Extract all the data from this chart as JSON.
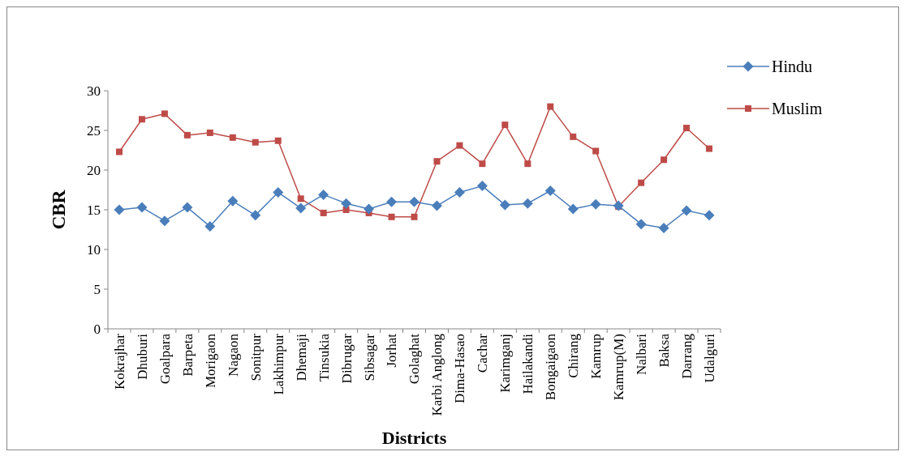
{
  "chart_data": {
    "type": "line",
    "xlabel": "Districts",
    "ylabel": "CBR",
    "categories": [
      "Kokrajhar",
      "Dhuburi",
      "Goalpara",
      "Barpeta",
      "Morigaon",
      "Nagaon",
      "Sonitpur",
      "Lakhimpur",
      "Dhemaji",
      "Tinsukia",
      "Dibrugar",
      "Sibsagar",
      "Jorhat",
      "Golaghat",
      "Karbi Anglong",
      "Dima-Hasao",
      "Cachar",
      "Karimganj",
      "Hailakandi",
      "Bongaigaon",
      "Chirang",
      "Kamrup",
      "Kamrup(M)",
      "Nalbari",
      "Baksa",
      "Darrang",
      "Udalguri"
    ],
    "series": [
      {
        "name": "Hindu",
        "color": "#4a7ebb",
        "marker": "diamond",
        "values": [
          15.0,
          15.3,
          13.6,
          15.3,
          12.9,
          16.1,
          14.3,
          17.2,
          15.2,
          16.9,
          15.8,
          15.1,
          16.0,
          16.0,
          15.5,
          17.2,
          18.0,
          15.6,
          15.8,
          17.4,
          15.1,
          15.7,
          15.5,
          13.2,
          12.7,
          14.9,
          14.3
        ]
      },
      {
        "name": "Muslim",
        "color": "#be4b48",
        "marker": "square",
        "values": [
          22.3,
          26.4,
          27.1,
          24.4,
          24.7,
          24.1,
          23.5,
          23.7,
          16.4,
          14.6,
          15.0,
          14.6,
          14.1,
          14.1,
          21.1,
          23.1,
          20.8,
          25.7,
          20.8,
          28.0,
          24.2,
          22.4,
          15.4,
          18.4,
          21.3,
          25.3,
          22.7
        ]
      }
    ],
    "ylim": [
      0,
      30
    ],
    "yticks": [
      0,
      5,
      10,
      15,
      20,
      25,
      30
    ],
    "grid": false,
    "legend": "right"
  }
}
